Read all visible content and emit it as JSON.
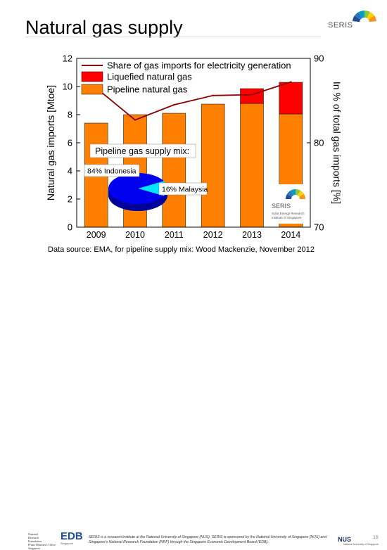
{
  "slide": {
    "title": "Natural gas supply",
    "logo_text": "SERIS",
    "source": "Data source: EMA, for pipeline supply mix: Wood Mackenzie, November 2012",
    "footer": {
      "nrf_lines": [
        "National",
        "Research",
        "Foundation",
        "Prime Minister's Office",
        "Singapore"
      ],
      "edb": "EDB",
      "edb_sub": "Singapore",
      "disclaimer": "SERIS is a research institute at the National University of Singapore (NUS). SERIS is sponsored by the National University of Singapore (NUS) and Singapore's National Research Foundation (NRF) through the Singapore Economic Development Board (EDB).",
      "nus": "NUS",
      "nus_sub": "National University of Singapore",
      "page_number": "16"
    }
  },
  "chart_data": {
    "type": "bar",
    "stacked": true,
    "categories": [
      "2009",
      "2010",
      "2011",
      "2012",
      "2013",
      "2014"
    ],
    "series": [
      {
        "name": "Pipeline natural gas",
        "values": [
          7.4,
          8.0,
          8.1,
          8.75,
          8.8,
          8.05
        ],
        "color": "#ff8000"
      },
      {
        "name": "Liquefied natural gas",
        "values": [
          0,
          0,
          0,
          0,
          1.05,
          2.25
        ],
        "color": "#ff0000"
      }
    ],
    "line_series": {
      "name": "Share of gas imports for electricity generation",
      "values": [
        86.5,
        82.7,
        84.5,
        85.6,
        85.7,
        87.2
      ],
      "color": "#8b0000",
      "axis": "right"
    },
    "ylabel": "Natural gas imports [Mtoe]",
    "ylim": [
      0,
      12
    ],
    "yticks": [
      0,
      2,
      4,
      6,
      8,
      10,
      12
    ],
    "y2label": "In % of total gas imports [%]",
    "y2lim": [
      70,
      90
    ],
    "y2ticks": [
      70,
      80,
      90
    ],
    "legend_position": "top-left",
    "inset_pie": {
      "title": "Pipeline gas supply mix:",
      "slices": [
        {
          "label": "84% Indonesia",
          "value": 84,
          "color": "#0000ee"
        },
        {
          "label": "16% Malaysia",
          "value": 16,
          "color": "#00e5ff"
        }
      ]
    },
    "inset_logo": {
      "text": "SERIS",
      "subtext": [
        "Solar Energy Research",
        "Institute of Singapore"
      ]
    }
  }
}
